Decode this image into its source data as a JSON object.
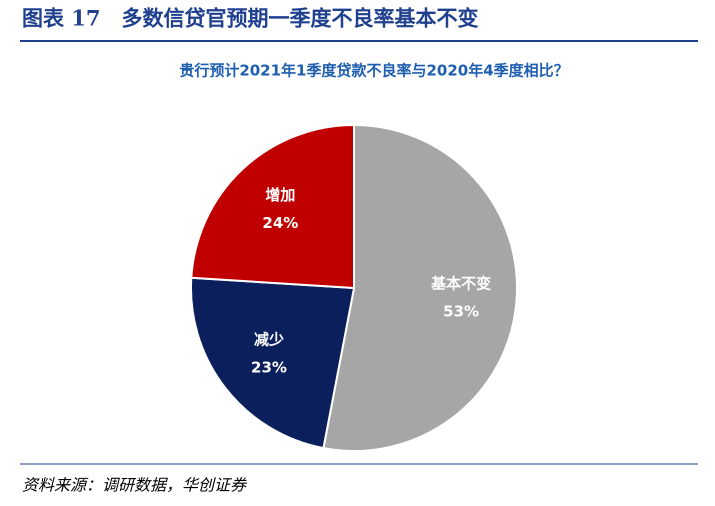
{
  "chart_data": {
    "type": "pie",
    "title": "图表 17　多数信贷官预期一季度不良率基本不变",
    "subtitle": "贵行预计2021年1季度贷款不良率与2020年4季度相比？",
    "categories": [
      "基本不变",
      "减少",
      "增加"
    ],
    "values": [
      53,
      23,
      24
    ],
    "value_labels": [
      "53%",
      "23%",
      "24%"
    ],
    "colors": [
      "#a6a6a6",
      "#0a1f5c",
      "#c00000"
    ],
    "source": "资料来源：调研数据，华创证券"
  }
}
